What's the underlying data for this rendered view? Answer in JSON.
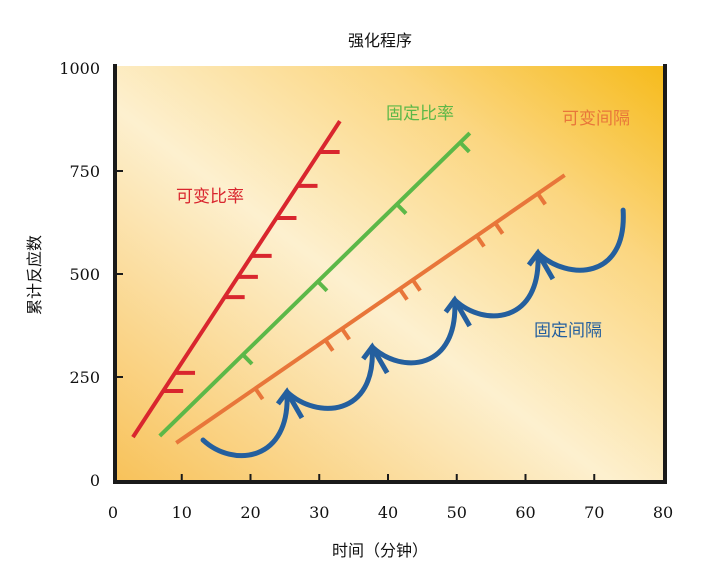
{
  "chart_data": {
    "type": "line",
    "title": "强化程序",
    "xlabel": "时间（分钟）",
    "ylabel": "累计反应数",
    "xlim": [
      0,
      80
    ],
    "ylim": [
      0,
      1000
    ],
    "xticks": [
      "0",
      "10",
      "20",
      "30",
      "40",
      "50",
      "60",
      "70",
      "80"
    ],
    "yticks": [
      "0",
      "250",
      "500",
      "750",
      "1000"
    ],
    "grid": false,
    "series": [
      {
        "name": "可变比率",
        "color": "#d9262e",
        "x": [
          2.9,
          33.0
        ],
        "y": [
          104,
          871
        ],
        "reinforcements": [
          216,
          260,
          444,
          493,
          544,
          636,
          714,
          796
        ],
        "tick_style": "horizontal"
      },
      {
        "name": "固定比率",
        "color": "#5cb848",
        "x": [
          6.8,
          51.9
        ],
        "y": [
          107,
          842
        ],
        "reinforcements_t": [
          18.9,
          29.8,
          41.3,
          50.5
        ],
        "tick_style": "perpendicular"
      },
      {
        "name": "可变间隔",
        "color": "#e8763a",
        "x": [
          9.2,
          65.7
        ],
        "y": [
          90,
          740
        ],
        "reinforcements_t": [
          20.7,
          30.9,
          33.3,
          41.7,
          43.6,
          52.9,
          55.6,
          61.8
        ],
        "tick_style": "perpendicular"
      },
      {
        "name": "固定间隔",
        "color": "#245f9e",
        "scallop_points": [
          [
            13.1,
            97
          ],
          [
            25.3,
            214
          ],
          [
            37.7,
            323
          ],
          [
            49.7,
            437
          ],
          [
            61.8,
            551
          ],
          [
            74.2,
            655
          ]
        ],
        "tick_style": "arrow"
      }
    ]
  }
}
